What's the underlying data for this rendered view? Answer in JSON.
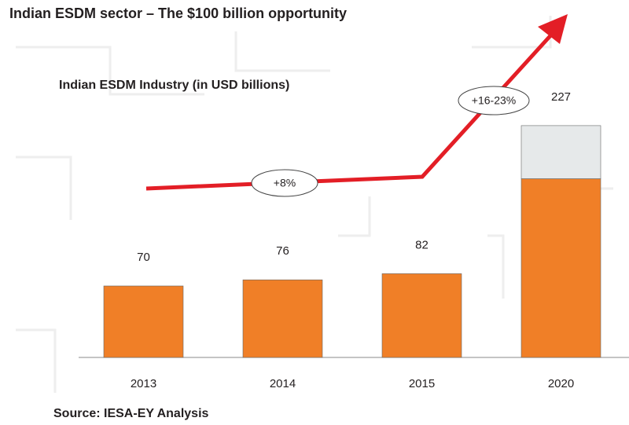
{
  "chart_data": {
    "type": "bar",
    "title": "Indian ESDM sector – The $100 billion opportunity",
    "subtitle": "Indian ESDM Industry  (in USD billions)",
    "source": "Source: IESA-EY Analysis",
    "categories": [
      "2013",
      "2014",
      "2015",
      "2020"
    ],
    "series": [
      {
        "color": "#f07f27",
        "values": [
          70,
          76,
          82,
          175
        ]
      },
      {
        "color": "#e6e9ea",
        "values": [
          null,
          null,
          null,
          52
        ]
      }
    ],
    "data_labels": [
      70,
      76,
      82,
      227
    ],
    "growth_labels": [
      "+8%",
      "+16-23%"
    ],
    "ylim": [
      0,
      270
    ]
  }
}
